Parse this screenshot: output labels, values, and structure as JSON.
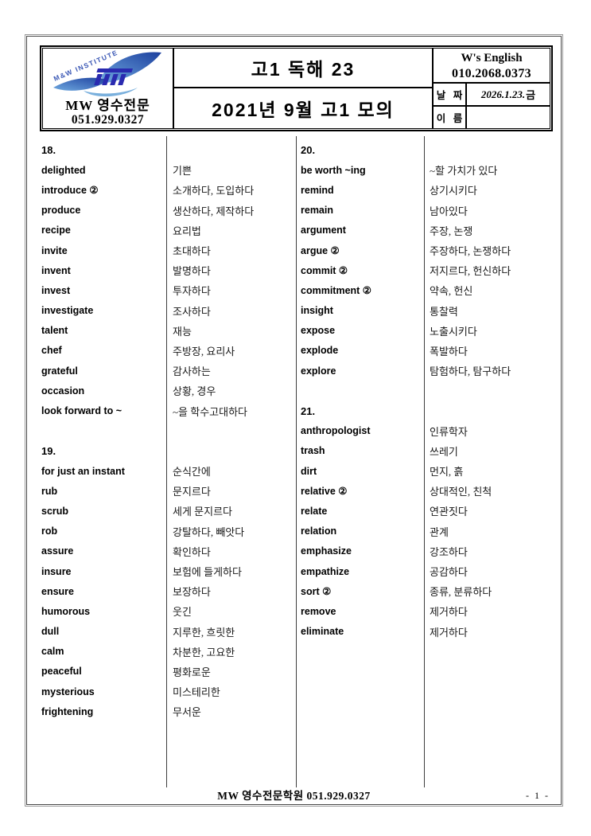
{
  "header": {
    "logo": {
      "institute_text": "M&W INSTITUTE",
      "name": "MW 영수전문",
      "phone": "051.929.0327"
    },
    "title_top": "고1 독해 23",
    "title_bottom": "2021년 9월 고1 모의",
    "brand": "W's English",
    "brand_phone": "010.2068.0373",
    "date_label": "날 짜",
    "date_value": "2026.1.23.",
    "date_day": "금",
    "name_label": "이 름",
    "name_value": ""
  },
  "vocab": {
    "left": [
      {
        "type": "section",
        "label": "18."
      },
      {
        "type": "word",
        "en": "delighted",
        "ko": "기쁜"
      },
      {
        "type": "word",
        "en": "introduce ②",
        "ko": "소개하다, 도입하다"
      },
      {
        "type": "word",
        "en": "produce",
        "ko": "생산하다, 제작하다"
      },
      {
        "type": "word",
        "en": "recipe",
        "ko": "요리법"
      },
      {
        "type": "word",
        "en": "invite",
        "ko": "초대하다"
      },
      {
        "type": "word",
        "en": "invent",
        "ko": "발명하다"
      },
      {
        "type": "word",
        "en": "invest",
        "ko": "투자하다"
      },
      {
        "type": "word",
        "en": "investigate",
        "ko": "조사하다"
      },
      {
        "type": "word",
        "en": "talent",
        "ko": "재능"
      },
      {
        "type": "word",
        "en": "chef",
        "ko": "주방장, 요리사"
      },
      {
        "type": "word",
        "en": "grateful",
        "ko": "감사하는"
      },
      {
        "type": "word",
        "en": "occasion",
        "ko": "상황, 경우"
      },
      {
        "type": "word",
        "en": "look forward to ~",
        "ko": "~을 학수고대하다"
      },
      {
        "type": "blank"
      },
      {
        "type": "section",
        "label": "19."
      },
      {
        "type": "word",
        "en": "for just an instant",
        "ko": "순식간에"
      },
      {
        "type": "word",
        "en": "rub",
        "ko": "문지르다"
      },
      {
        "type": "word",
        "en": "scrub",
        "ko": "세게 문지르다"
      },
      {
        "type": "word",
        "en": "rob",
        "ko": "강탈하다, 빼앗다"
      },
      {
        "type": "word",
        "en": "assure",
        "ko": "확인하다"
      },
      {
        "type": "word",
        "en": "insure",
        "ko": "보험에 들게하다"
      },
      {
        "type": "word",
        "en": "ensure",
        "ko": "보장하다"
      },
      {
        "type": "word",
        "en": "humorous",
        "ko": "웃긴"
      },
      {
        "type": "word",
        "en": "dull",
        "ko": "지루한, 흐릿한"
      },
      {
        "type": "word",
        "en": "calm",
        "ko": "차분한, 고요한"
      },
      {
        "type": "word",
        "en": "peaceful",
        "ko": "평화로운"
      },
      {
        "type": "word",
        "en": "mysterious",
        "ko": "미스테리한"
      },
      {
        "type": "word",
        "en": "frightening",
        "ko": "무서운"
      }
    ],
    "right": [
      {
        "type": "section",
        "label": "20."
      },
      {
        "type": "word",
        "en": "be worth ~ing",
        "ko": "~할 가치가 있다"
      },
      {
        "type": "word",
        "en": "remind",
        "ko": "상기시키다"
      },
      {
        "type": "word",
        "en": "remain",
        "ko": "남아있다"
      },
      {
        "type": "word",
        "en": "argument",
        "ko": "주장, 논쟁"
      },
      {
        "type": "word",
        "en": "argue ②",
        "ko": "주장하다, 논쟁하다"
      },
      {
        "type": "word",
        "en": "commit ②",
        "ko": "저지르다, 헌신하다"
      },
      {
        "type": "word",
        "en": "commitment ②",
        "ko": "약속, 헌신"
      },
      {
        "type": "word",
        "en": "insight",
        "ko": "통찰력"
      },
      {
        "type": "word",
        "en": "expose",
        "ko": "노출시키다"
      },
      {
        "type": "word",
        "en": "explode",
        "ko": "폭발하다"
      },
      {
        "type": "word",
        "en": "explore",
        "ko": "탐험하다, 탐구하다"
      },
      {
        "type": "blank"
      },
      {
        "type": "section",
        "label": "21."
      },
      {
        "type": "word",
        "en": "anthropologist",
        "ko": "인류학자"
      },
      {
        "type": "word",
        "en": "trash",
        "ko": "쓰레기"
      },
      {
        "type": "word",
        "en": "dirt",
        "ko": "먼지, 흙"
      },
      {
        "type": "word",
        "en": "relative ②",
        "ko": "상대적인, 친척"
      },
      {
        "type": "word",
        "en": "relate",
        "ko": "연관짓다"
      },
      {
        "type": "word",
        "en": "relation",
        "ko": "관계"
      },
      {
        "type": "word",
        "en": "emphasize",
        "ko": "강조하다"
      },
      {
        "type": "word",
        "en": "empathize",
        "ko": "공감하다"
      },
      {
        "type": "word",
        "en": "sort ②",
        "ko": "종류, 분류하다"
      },
      {
        "type": "word",
        "en": "remove",
        "ko": "제거하다"
      },
      {
        "type": "word",
        "en": "eliminate",
        "ko": "제거하다"
      }
    ]
  },
  "footer": {
    "center": "MW 영수전문학원  051.929.0327",
    "page": "- 1 -"
  },
  "colors": {
    "logo_blue_dark": "#1c3f9e",
    "logo_blue_light": "#5d9bd9",
    "logo_letter_blue": "#2a2ab0",
    "border_black": "#000000",
    "page_border_gray": "#979797"
  }
}
